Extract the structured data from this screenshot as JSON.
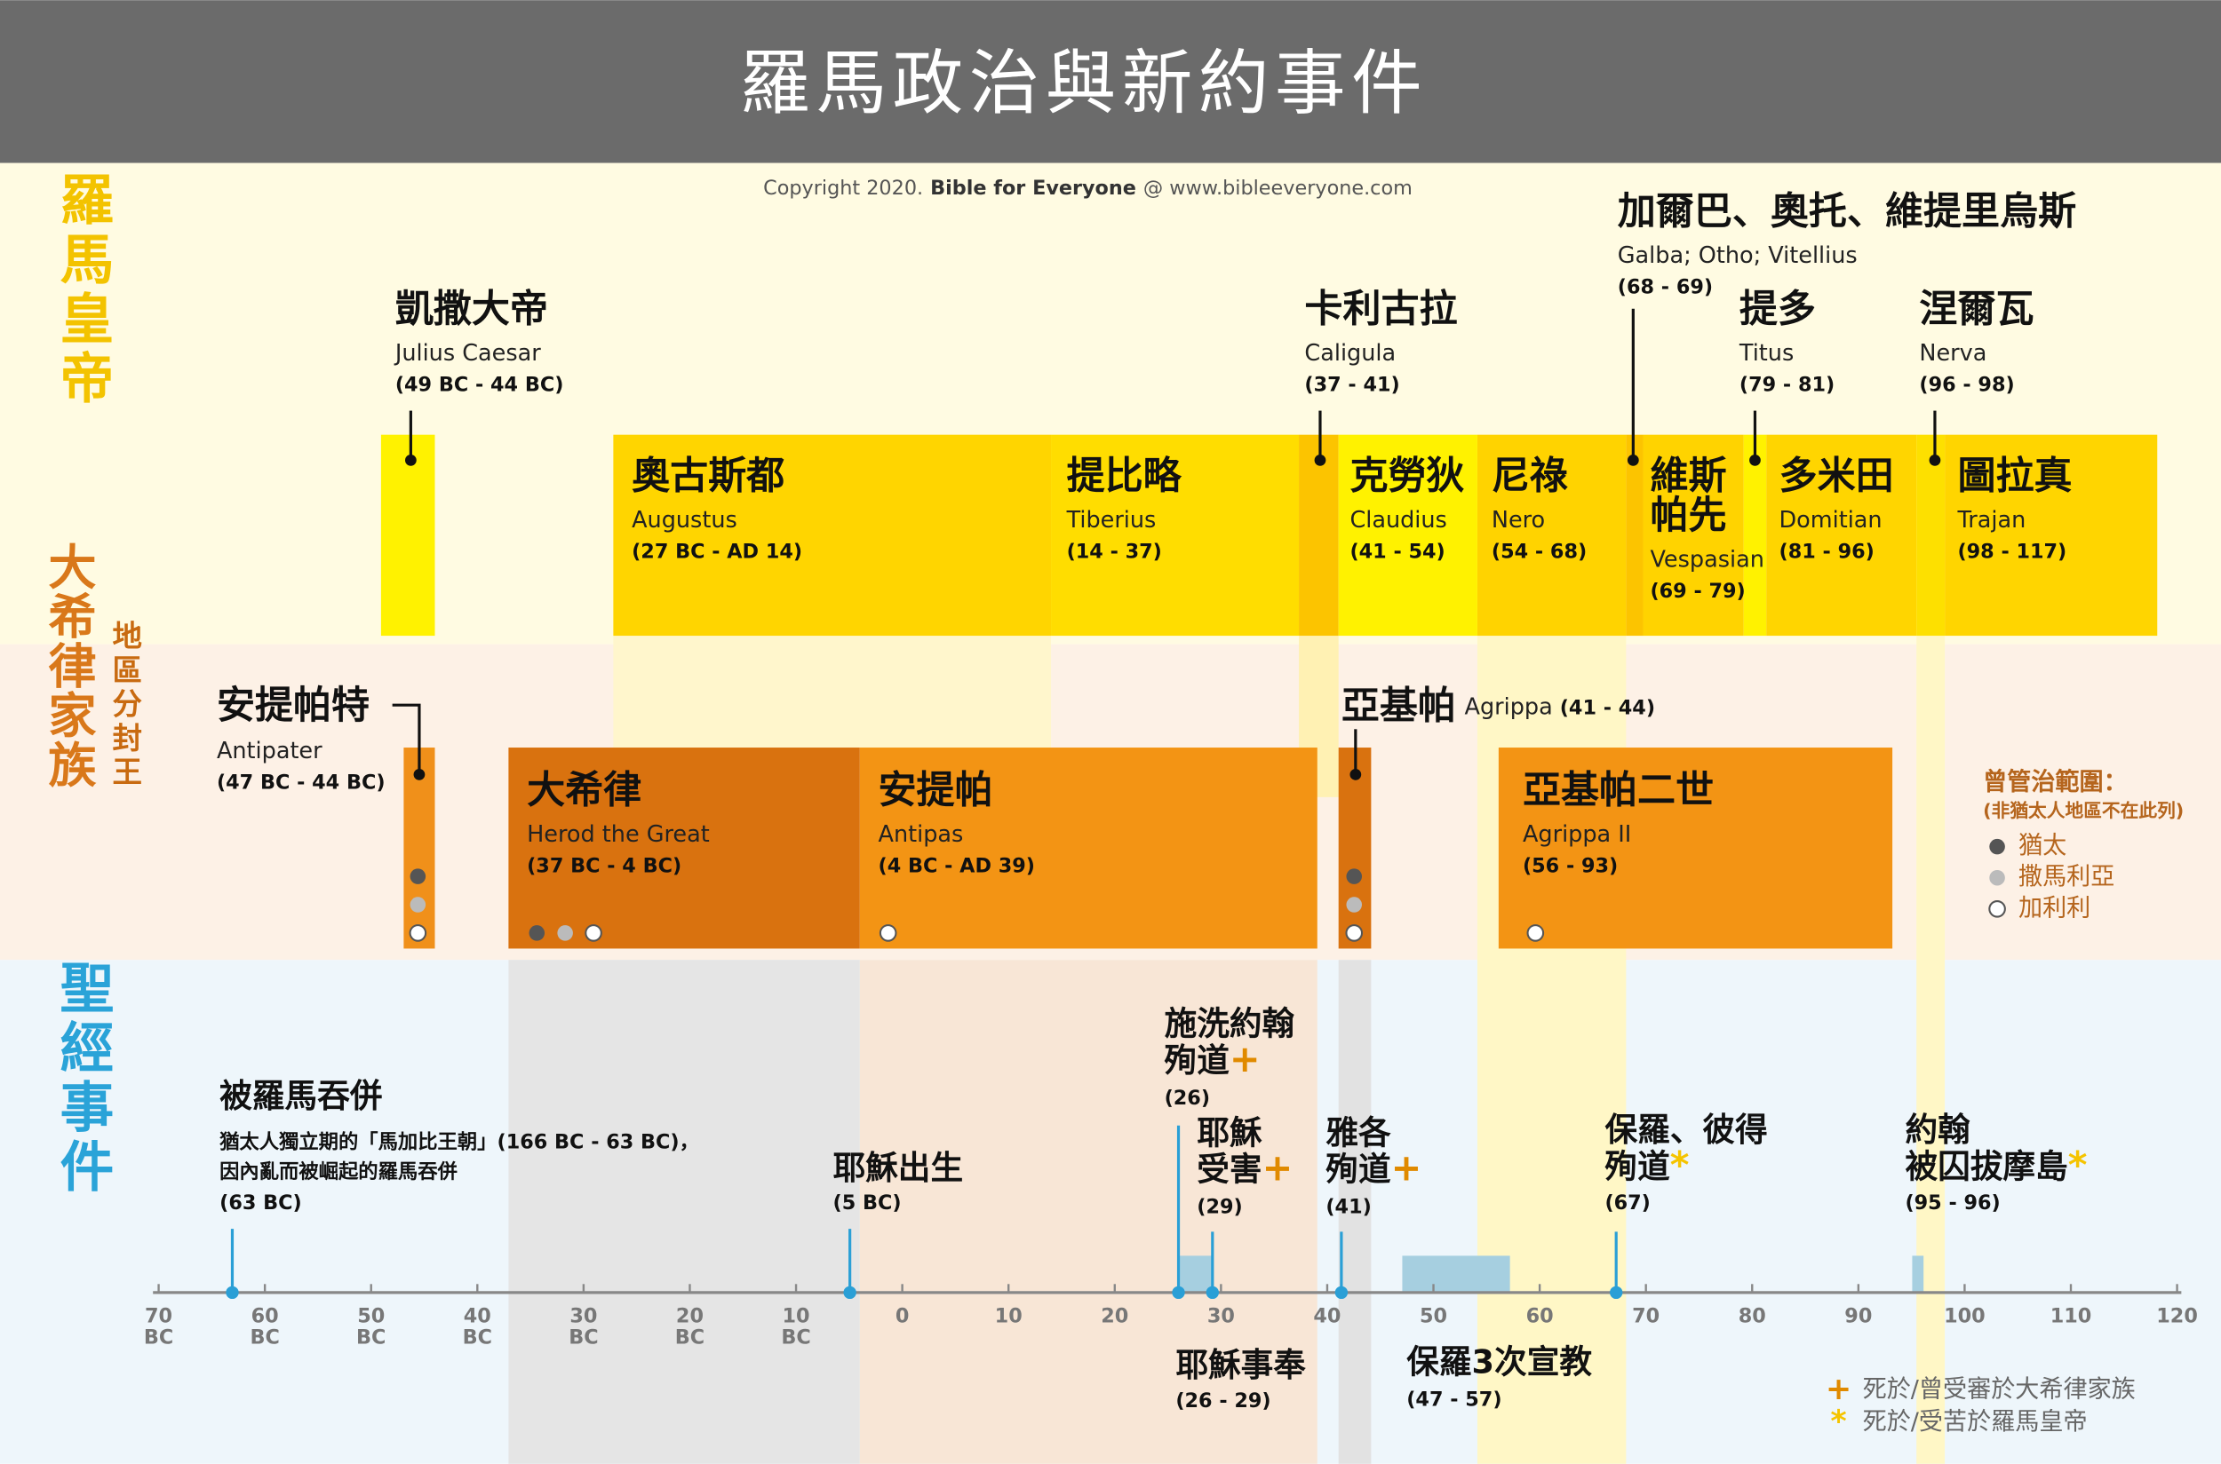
{
  "title": "羅馬政治與新約事件",
  "copyright": {
    "prefix": "Copyright 2020.",
    "brand": "Bible for Everyone",
    "suffix": "@ www.bibleeveryone.com"
  },
  "sections": {
    "emperors": "羅馬皇帝",
    "herods": "大希律家族",
    "tetrarch": "地區分封王",
    "events": "聖經事件"
  },
  "emperors": [
    {
      "name": "凱撒大帝",
      "latin": "Julius Caesar",
      "years": "(49 BC - 44 BC)"
    },
    {
      "name": "奧古斯都",
      "latin": "Augustus",
      "years": "(27 BC - AD 14)"
    },
    {
      "name": "提比略",
      "latin": "Tiberius",
      "years": "(14 - 37)"
    },
    {
      "name": "卡利古拉",
      "latin": "Caligula",
      "years": "(37 - 41)"
    },
    {
      "name": "克勞狄",
      "latin": "Claudius",
      "years": "(41 - 54)"
    },
    {
      "name": "尼祿",
      "latin": "Nero",
      "years": "(54 - 68)"
    },
    {
      "name": "加爾巴、奧托、維提里烏斯",
      "latin": "Galba; Otho; Vitellius",
      "years": "(68 - 69)"
    },
    {
      "name": "維斯帕先",
      "latin": "Vespasian",
      "years": "(69 - 79)"
    },
    {
      "name": "提多",
      "latin": "Titus",
      "years": "(79 - 81)"
    },
    {
      "name": "多米田",
      "latin": "Domitian",
      "years": "(81 - 96)"
    },
    {
      "name": "涅爾瓦",
      "latin": "Nerva",
      "years": "(96 - 98)"
    },
    {
      "name": "圖拉真",
      "latin": "Trajan",
      "years": "(98 - 117)"
    }
  ],
  "herods": [
    {
      "name": "安提帕特",
      "latin": "Antipater",
      "years": "(47 BC - 44 BC)"
    },
    {
      "name": "大希律",
      "latin": "Herod the Great",
      "years": "(37 BC - 4 BC)"
    },
    {
      "name": "安提帕",
      "latin": "Antipas",
      "years": "(4 BC - AD 39)"
    },
    {
      "name": "亞基帕",
      "latin": "Agrippa",
      "years": "(41 - 44)"
    },
    {
      "name": "亞基帕二世",
      "latin": "Agrippa II",
      "years": "(56 - 93)"
    }
  ],
  "events": [
    {
      "lines": [
        "被羅馬吞併"
      ],
      "note": [
        "猶太人獨立期的「馬加比王朝」(166 BC - 63 BC)，",
        "因內亂而被崛起的羅馬吞併"
      ],
      "years": "(63 BC)"
    },
    {
      "lines": [
        "耶穌出生"
      ],
      "years": "(5 BC)"
    },
    {
      "lines": [
        "施洗約翰",
        "殉道"
      ],
      "mark": "+",
      "years": "(26)"
    },
    {
      "lines": [
        "耶穌",
        "受害"
      ],
      "mark": "+",
      "years": "(29)"
    },
    {
      "lines": [
        "雅各",
        "殉道"
      ],
      "mark": "+",
      "years": "(41)"
    },
    {
      "lines": [
        "保羅、彼得",
        "殉道"
      ],
      "mark": "*",
      "years": "(67)"
    },
    {
      "lines": [
        "約翰",
        "被囚拔摩島"
      ],
      "mark": "*",
      "years": "(95 - 96)"
    },
    {
      "lines": [
        "耶穌事奉"
      ],
      "years": "(26 - 29)"
    },
    {
      "lines": [
        "保羅3次宣教"
      ],
      "years": "(47 - 57)"
    }
  ],
  "axis": {
    "ticks": [
      {
        "num": "70",
        "era": "BC"
      },
      {
        "num": "60",
        "era": "BC"
      },
      {
        "num": "50",
        "era": "BC"
      },
      {
        "num": "40",
        "era": "BC"
      },
      {
        "num": "30",
        "era": "BC"
      },
      {
        "num": "20",
        "era": "BC"
      },
      {
        "num": "10",
        "era": "BC"
      },
      {
        "num": "0"
      },
      {
        "num": "10"
      },
      {
        "num": "20"
      },
      {
        "num": "30"
      },
      {
        "num": "40"
      },
      {
        "num": "50"
      },
      {
        "num": "60"
      },
      {
        "num": "70"
      },
      {
        "num": "80"
      },
      {
        "num": "90"
      },
      {
        "num": "100"
      },
      {
        "num": "110"
      },
      {
        "num": "120"
      }
    ]
  },
  "legend_region": {
    "title": "曾管治範圍：",
    "note": "(非猶太人地區不在此列)",
    "items": [
      "猶太",
      "撒馬利亞",
      "加利利"
    ]
  },
  "legend_marks": [
    {
      "symbol": "+",
      "text": "死於/曾受審於大希律家族"
    },
    {
      "symbol": "*",
      "text": "死於/受苦於羅馬皇帝"
    }
  ]
}
